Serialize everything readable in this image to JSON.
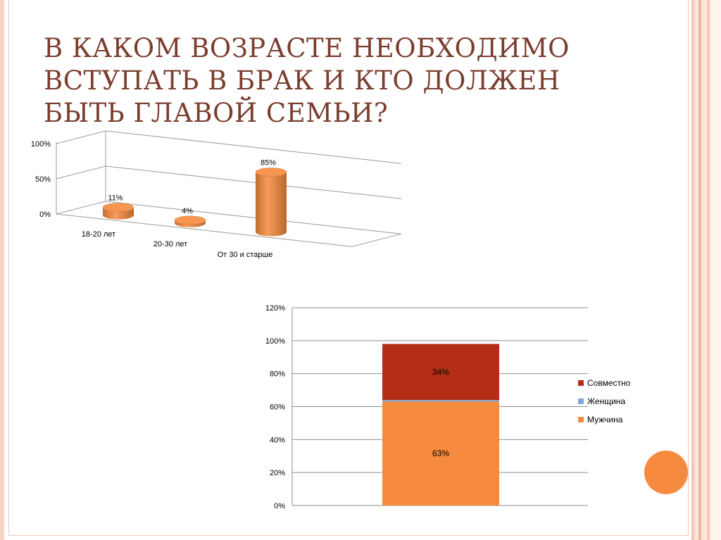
{
  "title": "В КАКОМ ВОЗРАСТЕ НЕОБХОДИМО ВСТУПАТЬ В БРАК И КТО ДОЛЖЕН БЫТЬ ГЛАВОЙ СЕМЬИ?",
  "colors": {
    "accent": "#f68a3e",
    "title": "#7a3d2e",
    "frame": "#f0c6b3"
  },
  "chart_data": [
    {
      "type": "bar",
      "three_d": true,
      "shape": "cylinder",
      "categories": [
        "18-20 лет",
        "20-30 лет",
        "От 30 и старше"
      ],
      "values": [
        11,
        4,
        85
      ],
      "data_labels": [
        "11%",
        "4%",
        "85%"
      ],
      "y_ticks": [
        "0%",
        "50%",
        "100%"
      ],
      "ylim": [
        0,
        100
      ],
      "grid": true,
      "color": "#f68a3e"
    },
    {
      "type": "bar",
      "stacked": true,
      "categories": [
        ""
      ],
      "series": [
        {
          "name": "Мужчина",
          "values": [
            63
          ],
          "label": "63%",
          "color": "#f68a3e"
        },
        {
          "name": "Женщина",
          "values": [
            1
          ],
          "label": "",
          "color": "#7fa6d9"
        },
        {
          "name": "Совместно",
          "values": [
            34
          ],
          "label": "34%",
          "color": "#b42d17"
        }
      ],
      "y_ticks": [
        "0%",
        "20%",
        "40%",
        "60%",
        "80%",
        "100%",
        "120%"
      ],
      "ylim": [
        0,
        120
      ],
      "grid": true,
      "legend": "right",
      "legend_entries": [
        "Совместно",
        "Женщина",
        "Мужчина"
      ]
    }
  ]
}
